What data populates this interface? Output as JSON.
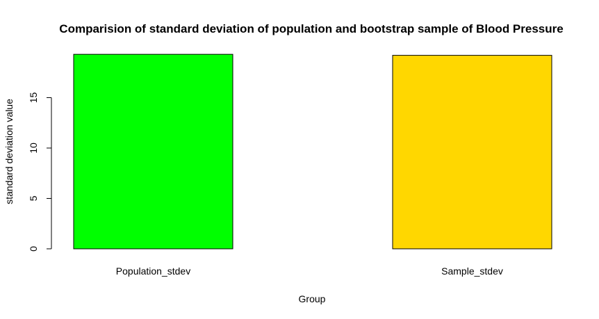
{
  "chart_data": {
    "type": "bar",
    "title": "Comparision of standard deviation of population and bootstrap sample of Blood Pressure",
    "xlabel": "Group",
    "ylabel": "standard deviation value",
    "categories": [
      "Population_stdev",
      "Sample_stdev"
    ],
    "values": [
      19.3,
      19.2
    ],
    "colors": [
      "#00ff00",
      "#ffd700"
    ],
    "yticks": [
      0,
      5,
      10,
      15
    ],
    "ylim": [
      0,
      19.3
    ],
    "grid": false
  }
}
